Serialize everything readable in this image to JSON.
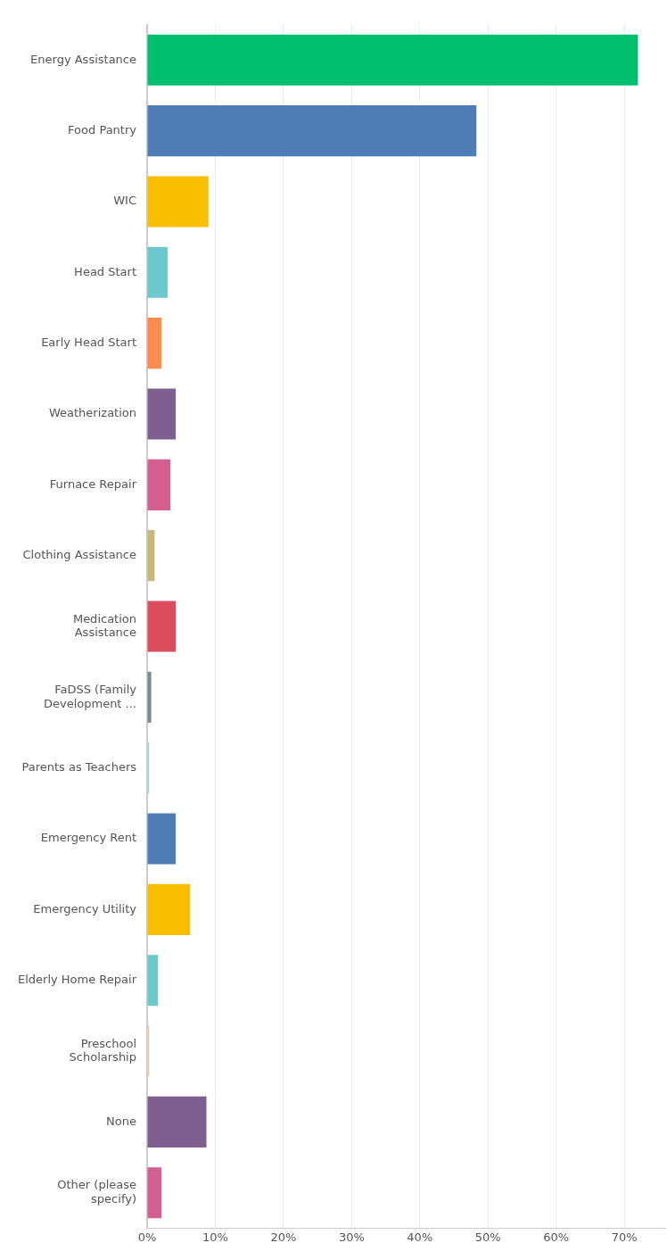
{
  "chart_data": {
    "type": "bar",
    "orientation": "horizontal",
    "categories": [
      "Energy Assistance",
      "Food Pantry",
      "WIC",
      "Head Start",
      "Early Head Start",
      "Weatherization",
      "Furnace Repair",
      "Clothing Assistance",
      "Medication Assistance",
      "FaDSS (Family Development ...",
      "Parents as Teachers",
      "Emergency Rent",
      "Emergency Utility",
      "Elderly Home Repair",
      "Preschool Scholarship",
      "None",
      "Other (please specify)"
    ],
    "values": [
      72.0,
      48.3,
      9.0,
      3.0,
      2.1,
      4.2,
      3.4,
      1.1,
      4.2,
      0.6,
      0.3,
      4.2,
      6.3,
      1.6,
      0.3,
      8.7,
      2.1
    ],
    "colors": [
      "#00bf6f",
      "#507cb6",
      "#f9be00",
      "#6bc8cd",
      "#ff8b4f",
      "#7f5f90",
      "#d25f90",
      "#c7b879",
      "#db4d5c",
      "#7d8992",
      "#a0e3c6",
      "#507cb6",
      "#f9be00",
      "#6bc8cd",
      "#ffc4a8",
      "#7f5f90",
      "#d25f90"
    ],
    "xlim": [
      0,
      76
    ],
    "xticks": [
      {
        "value": 0,
        "label": "0%"
      },
      {
        "value": 10,
        "label": "10%"
      },
      {
        "value": 20,
        "label": "20%"
      },
      {
        "value": 30,
        "label": "30%"
      },
      {
        "value": 40,
        "label": "40%"
      },
      {
        "value": 50,
        "label": "50%"
      },
      {
        "value": 60,
        "label": "60%"
      },
      {
        "value": 70,
        "label": "70%"
      }
    ],
    "grid": "x"
  }
}
